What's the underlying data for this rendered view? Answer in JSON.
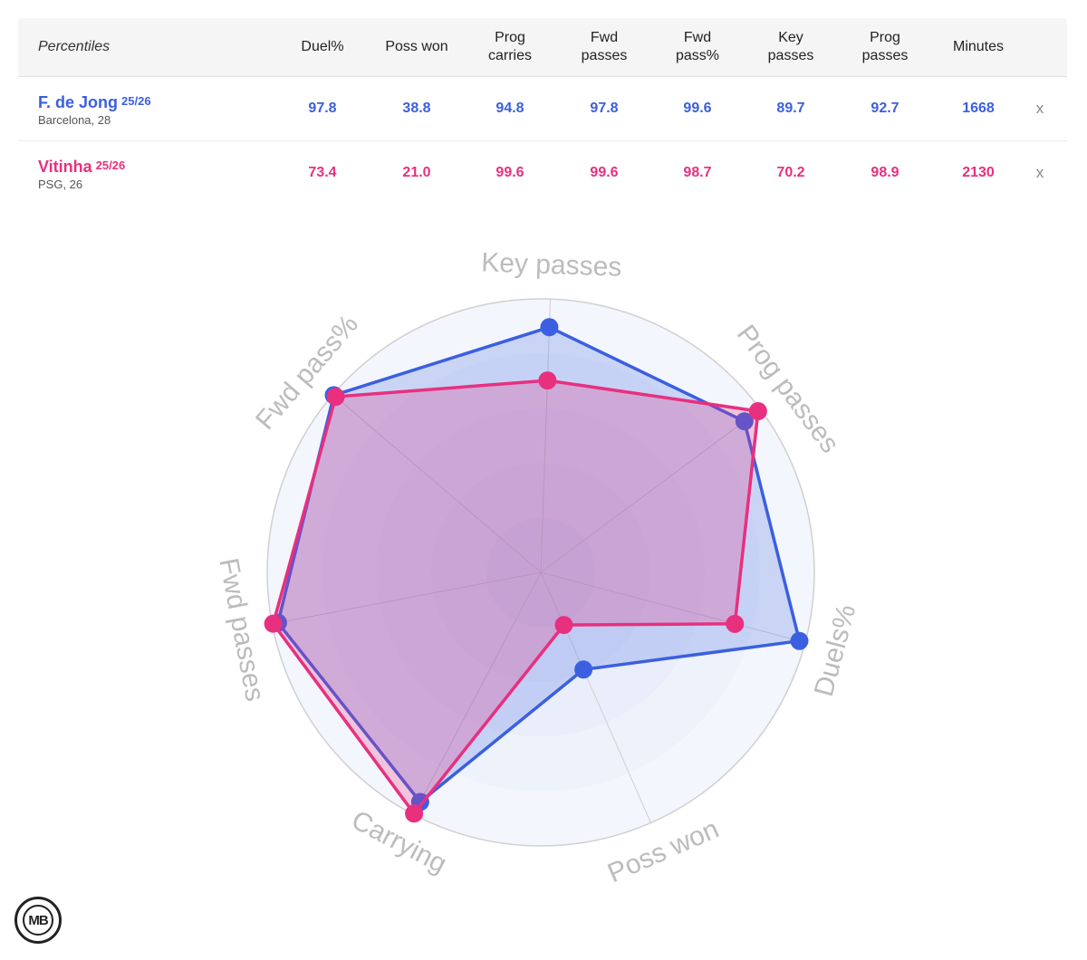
{
  "table": {
    "header_label": "Percentiles",
    "columns": [
      "Duel%",
      "Poss won",
      "Prog\ncarries",
      "Fwd\npasses",
      "Fwd\npass%",
      "Key\npasses",
      "Prog\npasses",
      "Minutes"
    ],
    "remove_label": "x",
    "players": [
      {
        "name": "F. de Jong",
        "season": "25/26",
        "club": "Barcelona, 28",
        "color": "#3b5fe0",
        "values": [
          "97.8",
          "38.8",
          "94.8",
          "97.8",
          "99.6",
          "89.7",
          "92.7",
          "1668"
        ]
      },
      {
        "name": "Vitinha",
        "season": "25/26",
        "club": "PSG, 26",
        "color": "#e8307f",
        "values": [
          "73.4",
          "21.0",
          "99.6",
          "99.6",
          "98.7",
          "70.2",
          "98.9",
          "2130"
        ]
      }
    ]
  },
  "chart_data": {
    "type": "radar",
    "axes": [
      "Key passes",
      "Prog passes",
      "Duels%",
      "Poss won",
      "Carrying",
      "Fwd passes",
      "Fwd pass%"
    ],
    "range": [
      0,
      100
    ],
    "series": [
      {
        "name": "F. de Jong",
        "color": "#3b5fe0",
        "values": [
          89.7,
          92.7,
          97.8,
          38.8,
          94.8,
          97.8,
          99.6
        ]
      },
      {
        "name": "Vitinha",
        "color": "#e8307f",
        "values": [
          70.2,
          98.9,
          73.4,
          21.0,
          99.6,
          99.6,
          98.7
        ]
      }
    ]
  },
  "logo": {
    "text": "MB"
  }
}
